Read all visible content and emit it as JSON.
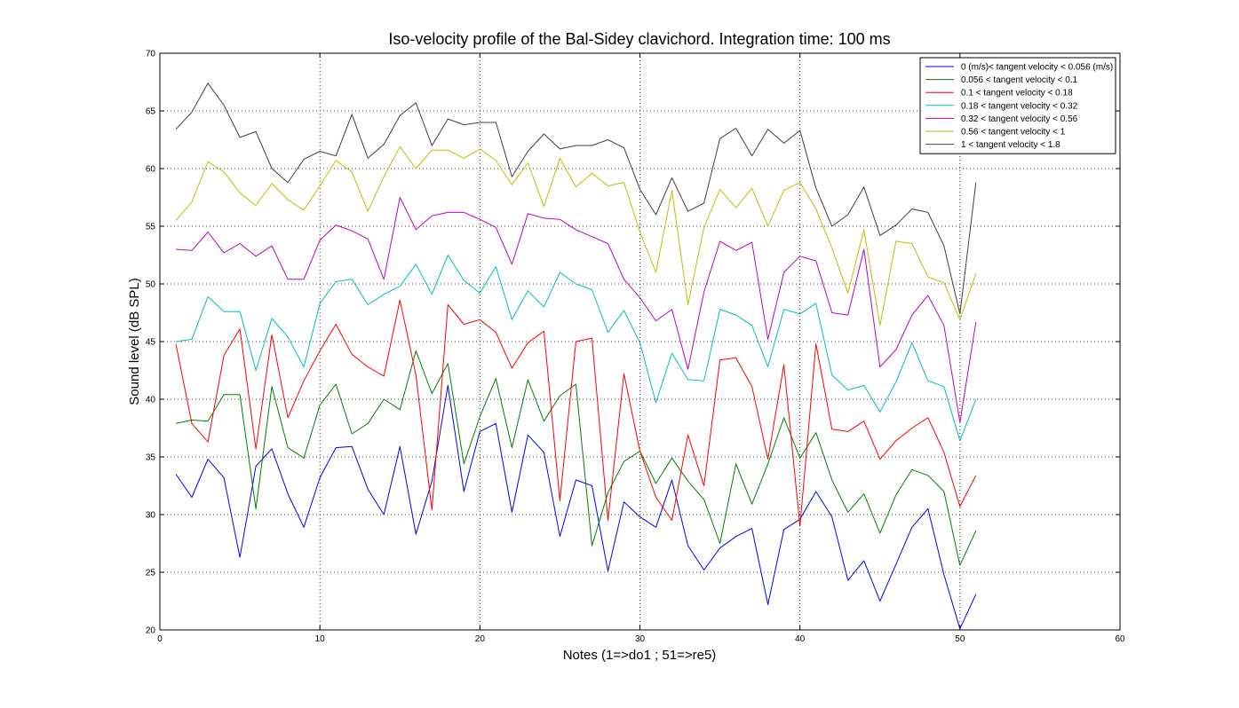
{
  "chart_data": {
    "type": "line",
    "title": "Iso-velocity profile of the Bal-Sidey clavichord. Integration time: 100 ms",
    "xlabel": "Notes (1=>do1 ; 51=>re5)",
    "ylabel": "Sound level (dB SPL)",
    "xlim": [
      0,
      60
    ],
    "ylim": [
      20,
      70
    ],
    "xticks": [
      0,
      10,
      20,
      30,
      40,
      50,
      60
    ],
    "yticks": [
      20,
      25,
      30,
      35,
      40,
      45,
      50,
      55,
      60,
      65,
      70
    ],
    "grid": true,
    "legend_position": "top-right",
    "x": [
      1,
      2,
      3,
      4,
      5,
      6,
      7,
      8,
      9,
      10,
      11,
      12,
      13,
      14,
      15,
      16,
      17,
      18,
      19,
      20,
      21,
      22,
      23,
      24,
      25,
      26,
      27,
      28,
      29,
      30,
      31,
      32,
      33,
      34,
      35,
      36,
      37,
      38,
      39,
      40,
      41,
      42,
      43,
      44,
      45,
      46,
      47,
      48,
      49,
      50,
      51
    ],
    "series": [
      {
        "name": "0 (m/s)< tangent velocity < 0.056 (m/s)",
        "color": "#0000ff",
        "values": [
          33.5,
          31.5,
          34.8,
          33.2,
          26.3,
          34.2,
          35.7,
          31.8,
          28.9,
          33.2,
          35.8,
          35.9,
          32.2,
          30.0,
          35.9,
          28.3,
          32.9,
          41.2,
          32.0,
          37.2,
          37.9,
          30.2,
          36.9,
          35.4,
          28.1,
          33.0,
          32.5,
          25.1,
          31.1,
          29.8,
          28.9,
          33.0,
          27.3,
          25.2,
          27.1,
          28.1,
          28.8,
          22.2,
          28.7,
          29.6,
          32.0,
          29.8,
          24.3,
          26.0,
          22.5,
          25.7,
          28.9,
          30.5,
          24.8,
          20.1,
          23.1
        ]
      },
      {
        "name": "0.056 < tangent velocity < 0.1",
        "color": "#008000",
        "values": [
          37.9,
          38.2,
          38.1,
          40.4,
          40.4,
          30.5,
          41.1,
          35.8,
          34.9,
          39.5,
          41.3,
          37.0,
          37.9,
          40.0,
          39.1,
          44.2,
          40.5,
          43.1,
          34.4,
          38.5,
          41.8,
          35.8,
          41.7,
          38.1,
          40.3,
          41.3,
          27.3,
          31.9,
          34.6,
          35.5,
          32.7,
          34.9,
          32.9,
          31.3,
          27.5,
          34.4,
          30.9,
          34.4,
          38.4,
          34.9,
          37.1,
          33.0,
          30.2,
          31.8,
          28.4,
          31.7,
          33.9,
          33.4,
          32.0,
          25.6,
          28.6
        ]
      },
      {
        "name": "0.1 < tangent velocity < 0.18",
        "color": "#ff0000",
        "values": [
          44.8,
          37.9,
          36.3,
          43.8,
          46.1,
          35.7,
          45.6,
          38.4,
          41.6,
          44.2,
          46.5,
          43.9,
          42.8,
          42.0,
          48.6,
          42.1,
          30.4,
          48.2,
          46.5,
          46.9,
          45.8,
          42.7,
          44.9,
          45.9,
          31.2,
          45.0,
          45.3,
          29.5,
          42.2,
          35.5,
          31.5,
          29.5,
          36.9,
          32.5,
          43.4,
          43.6,
          41.1,
          34.8,
          43.0,
          29.0,
          44.8,
          37.4,
          37.2,
          38.1,
          34.8,
          36.4,
          37.5,
          38.4,
          35.4,
          30.7,
          33.4
        ]
      },
      {
        "name": "0.18 < tangent velocity < 0.32",
        "color": "#00bfbf",
        "values": [
          45.0,
          45.2,
          48.9,
          47.6,
          47.6,
          42.5,
          47.0,
          45.4,
          42.8,
          48.3,
          50.2,
          50.4,
          48.2,
          49.1,
          49.8,
          51.7,
          49.1,
          52.5,
          50.3,
          49.2,
          51.5,
          46.9,
          49.4,
          48.0,
          51.0,
          50.0,
          49.5,
          45.8,
          47.7,
          44.9,
          39.7,
          44.0,
          41.7,
          41.6,
          47.8,
          47.3,
          46.4,
          42.8,
          47.8,
          47.4,
          48.3,
          42.1,
          40.8,
          41.2,
          38.9,
          41.5,
          44.9,
          41.6,
          41.1,
          36.4,
          40.0
        ]
      },
      {
        "name": "0.32 < tangent velocity < 0.56",
        "color": "#bf00bf",
        "values": [
          53.0,
          52.9,
          54.5,
          52.7,
          53.5,
          52.4,
          53.3,
          50.4,
          50.4,
          53.8,
          55.1,
          54.6,
          53.9,
          50.4,
          57.5,
          54.7,
          55.9,
          56.2,
          56.2,
          55.6,
          54.9,
          51.7,
          56.1,
          55.7,
          55.6,
          54.7,
          54.1,
          53.5,
          50.4,
          48.8,
          46.8,
          47.8,
          42.6,
          49.3,
          53.7,
          52.9,
          53.6,
          45.2,
          51.0,
          52.4,
          52.0,
          47.5,
          47.3,
          53.0,
          42.8,
          44.3,
          47.3,
          49.0,
          46.4,
          38.0,
          46.7
        ]
      },
      {
        "name": "0.56 < tangent velocity < 1",
        "color": "#bfbf00",
        "values": [
          55.5,
          57.1,
          60.6,
          59.7,
          57.9,
          56.8,
          58.7,
          57.3,
          56.4,
          58.5,
          60.7,
          59.7,
          56.3,
          59.3,
          61.9,
          60.0,
          61.6,
          61.6,
          60.9,
          61.7,
          60.7,
          58.6,
          60.5,
          56.7,
          60.9,
          58.4,
          59.6,
          58.5,
          58.8,
          54.5,
          51.0,
          58.1,
          48.2,
          54.9,
          58.2,
          56.6,
          58.3,
          55.0,
          58.1,
          58.8,
          56.5,
          53.1,
          49.2,
          54.7,
          46.4,
          53.7,
          53.5,
          50.6,
          50.1,
          46.9,
          50.9
        ]
      },
      {
        "name": "1 < tangent velocity < 1.8",
        "color": "#404040",
        "values": [
          63.4,
          64.9,
          67.4,
          65.5,
          62.7,
          63.2,
          60.0,
          58.8,
          60.8,
          61.5,
          61.1,
          64.7,
          60.9,
          62.1,
          64.6,
          65.7,
          62.0,
          64.3,
          63.8,
          64.0,
          64.0,
          59.3,
          61.5,
          63.0,
          61.7,
          62.0,
          62.0,
          62.5,
          61.8,
          58.2,
          56.0,
          59.2,
          56.3,
          57.0,
          62.6,
          63.5,
          61.1,
          63.4,
          62.2,
          63.3,
          58.3,
          55.0,
          56.0,
          58.4,
          54.2,
          55.1,
          56.5,
          56.2,
          53.3,
          47.4,
          58.8
        ]
      }
    ]
  }
}
